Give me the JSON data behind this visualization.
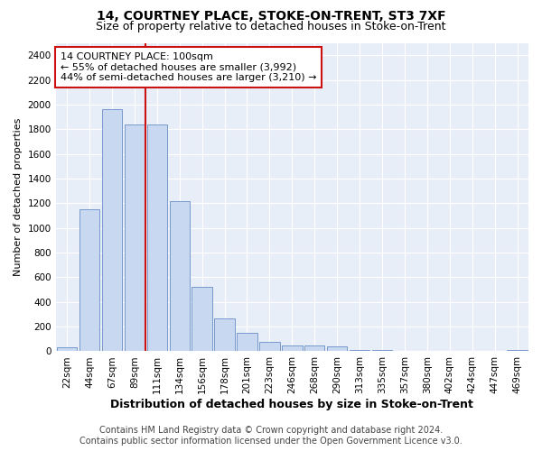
{
  "title": "14, COURTNEY PLACE, STOKE-ON-TRENT, ST3 7XF",
  "subtitle": "Size of property relative to detached houses in Stoke-on-Trent",
  "xlabel": "Distribution of detached houses by size in Stoke-on-Trent",
  "ylabel": "Number of detached properties",
  "categories": [
    "22sqm",
    "44sqm",
    "67sqm",
    "89sqm",
    "111sqm",
    "134sqm",
    "156sqm",
    "178sqm",
    "201sqm",
    "223sqm",
    "246sqm",
    "268sqm",
    "290sqm",
    "313sqm",
    "335sqm",
    "357sqm",
    "380sqm",
    "402sqm",
    "424sqm",
    "447sqm",
    "469sqm"
  ],
  "values": [
    30,
    1150,
    1960,
    1840,
    1840,
    1220,
    520,
    270,
    150,
    80,
    50,
    45,
    40,
    10,
    10,
    5,
    5,
    5,
    5,
    5,
    10
  ],
  "bar_color": "#c8d8f0",
  "bar_edge_color": "#7799cc",
  "vline_x_index": 3.5,
  "vline_color": "#cc1111",
  "annotation_line1": "14 COURTNEY PLACE: 100sqm",
  "annotation_line2": "← 55% of detached houses are smaller (3,992)",
  "annotation_line3": "44% of semi-detached houses are larger (3,210) →",
  "annotation_box_color": "#ffffff",
  "annotation_box_edge_color": "#cc1111",
  "ylim": [
    0,
    2500
  ],
  "yticks": [
    0,
    200,
    400,
    600,
    800,
    1000,
    1200,
    1400,
    1600,
    1800,
    2000,
    2200,
    2400
  ],
  "footer_line1": "Contains HM Land Registry data © Crown copyright and database right 2024.",
  "footer_line2": "Contains public sector information licensed under the Open Government Licence v3.0.",
  "background_color": "#ffffff",
  "plot_bg_color": "#e8eef8",
  "grid_color": "#ffffff",
  "title_fontsize": 10,
  "subtitle_fontsize": 9,
  "xlabel_fontsize": 9,
  "ylabel_fontsize": 8,
  "tick_fontsize": 7.5,
  "footer_fontsize": 7,
  "annot_fontsize": 8
}
